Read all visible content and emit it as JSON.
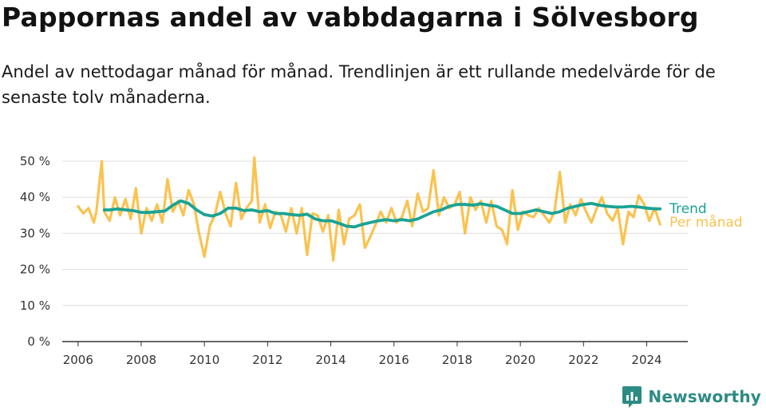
{
  "header": {
    "title": "Pappornas andel av vabbdagarna i Sölvesborg",
    "subtitle": "Andel av nettodagar månad för månad. Trendlinjen är ett rullande medelvärde för de senaste tolv månaderna."
  },
  "brand": {
    "name": "Newsworthy",
    "icon": "newsworthy-logo-icon"
  },
  "colors": {
    "trend": "#1aa394",
    "monthly": "#fbc24f",
    "grid": "#dddddd",
    "axis": "#333333"
  },
  "chart_data": {
    "type": "line",
    "title": "Pappornas andel av vabbdagarna i Sölvesborg",
    "xlabel": "",
    "ylabel": "",
    "x_range": [
      2005.5,
      2025.3
    ],
    "ylim": [
      0,
      50
    ],
    "yticks": [
      0,
      10,
      20,
      30,
      40,
      50
    ],
    "ytick_labels": [
      "0 %",
      "10 %",
      "20 %",
      "30 %",
      "40 %",
      "50 %"
    ],
    "xticks": [
      2006,
      2008,
      2010,
      2012,
      2014,
      2016,
      2018,
      2020,
      2022,
      2024
    ],
    "xtick_labels": [
      "2006",
      "2008",
      "2010",
      "2012",
      "2014",
      "2016",
      "2018",
      "2020",
      "2022",
      "2024"
    ],
    "grid": true,
    "legend": "right-of-last-point",
    "series": [
      {
        "name": "Per månad",
        "color": "#fbc24f",
        "x": [
          2006.0,
          2006.17,
          2006.33,
          2006.5,
          2006.58,
          2006.75,
          2006.83,
          2007.0,
          2007.17,
          2007.33,
          2007.5,
          2007.67,
          2007.83,
          2008.0,
          2008.17,
          2008.33,
          2008.5,
          2008.67,
          2008.83,
          2009.0,
          2009.17,
          2009.33,
          2009.5,
          2009.67,
          2009.83,
          2010.0,
          2010.17,
          2010.33,
          2010.5,
          2010.67,
          2010.83,
          2011.0,
          2011.17,
          2011.33,
          2011.5,
          2011.58,
          2011.75,
          2011.92,
          2012.08,
          2012.25,
          2012.42,
          2012.58,
          2012.75,
          2012.92,
          2013.08,
          2013.25,
          2013.42,
          2013.58,
          2013.75,
          2013.92,
          2014.08,
          2014.25,
          2014.42,
          2014.58,
          2014.75,
          2014.92,
          2015.08,
          2015.25,
          2015.42,
          2015.58,
          2015.75,
          2015.92,
          2016.08,
          2016.25,
          2016.42,
          2016.58,
          2016.75,
          2016.92,
          2017.08,
          2017.25,
          2017.42,
          2017.58,
          2017.75,
          2017.92,
          2018.08,
          2018.25,
          2018.42,
          2018.58,
          2018.75,
          2018.92,
          2019.08,
          2019.25,
          2019.42,
          2019.58,
          2019.75,
          2019.92,
          2020.08,
          2020.25,
          2020.42,
          2020.58,
          2020.75,
          2020.92,
          2021.08,
          2021.25,
          2021.42,
          2021.58,
          2021.75,
          2021.92,
          2022.08,
          2022.25,
          2022.42,
          2022.58,
          2022.75,
          2022.92,
          2023.08,
          2023.25,
          2023.42,
          2023.58,
          2023.75,
          2023.92,
          2024.08,
          2024.25,
          2024.42
        ],
        "values": [
          37.5,
          35.5,
          37,
          33,
          36,
          50,
          36,
          33.5,
          40,
          35,
          39.5,
          34,
          42.5,
          30,
          37,
          33.5,
          38,
          33,
          45,
          36,
          39,
          35,
          42,
          38,
          30,
          23.5,
          32,
          35,
          41.5,
          35.5,
          32,
          44,
          34,
          37,
          39,
          51,
          33,
          38,
          31.5,
          36,
          35,
          30.5,
          37,
          30,
          37,
          24,
          35.5,
          35,
          30.5,
          35,
          22.5,
          36.5,
          27,
          34,
          35,
          38,
          26,
          29,
          32.5,
          36,
          33,
          37,
          33,
          34.5,
          39,
          32,
          41,
          36,
          37,
          47.5,
          35,
          40,
          37,
          38,
          41.5,
          30,
          40,
          36.5,
          39,
          33,
          39,
          32,
          31,
          27,
          42,
          31,
          36,
          35,
          34.5,
          37,
          35,
          33,
          36,
          47,
          33,
          38,
          35,
          39.5,
          36,
          33,
          37,
          40,
          35.5,
          33.5,
          37,
          27,
          36,
          34.5,
          40.5,
          38,
          33.5,
          37,
          32.5
        ]
      },
      {
        "name": "Trend",
        "color": "#1aa394",
        "x": [
          2006.83,
          2007.0,
          2007.25,
          2007.5,
          2007.75,
          2008.0,
          2008.25,
          2008.5,
          2008.75,
          2009.0,
          2009.25,
          2009.5,
          2009.75,
          2010.0,
          2010.25,
          2010.5,
          2010.75,
          2011.0,
          2011.25,
          2011.5,
          2011.75,
          2012.0,
          2012.25,
          2012.5,
          2012.75,
          2013.0,
          2013.25,
          2013.5,
          2013.75,
          2014.0,
          2014.25,
          2014.5,
          2014.75,
          2015.0,
          2015.25,
          2015.5,
          2015.75,
          2016.0,
          2016.25,
          2016.5,
          2016.75,
          2017.0,
          2017.25,
          2017.5,
          2017.75,
          2018.0,
          2018.25,
          2018.5,
          2018.75,
          2019.0,
          2019.25,
          2019.5,
          2019.75,
          2020.0,
          2020.25,
          2020.5,
          2020.75,
          2021.0,
          2021.25,
          2021.5,
          2021.75,
          2022.0,
          2022.25,
          2022.5,
          2022.75,
          2023.0,
          2023.25,
          2023.5,
          2023.75,
          2024.0,
          2024.25,
          2024.42
        ],
        "values": [
          36.5,
          36.5,
          36.8,
          36.5,
          36.3,
          35.8,
          35.8,
          36.0,
          36.2,
          37.8,
          39.0,
          38.3,
          36.5,
          35.2,
          34.8,
          35.5,
          37.0,
          37.0,
          36.3,
          36.5,
          36.0,
          36.3,
          35.5,
          35.5,
          35.2,
          35.0,
          35.3,
          34.0,
          33.5,
          33.5,
          32.8,
          32.0,
          31.8,
          32.5,
          33.0,
          33.5,
          33.8,
          33.5,
          33.8,
          33.5,
          34.0,
          35.0,
          36.0,
          36.5,
          37.5,
          38.0,
          38.0,
          37.8,
          38.2,
          37.8,
          37.5,
          36.5,
          35.5,
          35.5,
          36.0,
          36.5,
          36.0,
          35.5,
          36.0,
          37.0,
          37.5,
          38.0,
          38.3,
          37.8,
          37.5,
          37.3,
          37.3,
          37.5,
          37.3,
          37.0,
          36.8,
          36.8
        ]
      }
    ]
  }
}
